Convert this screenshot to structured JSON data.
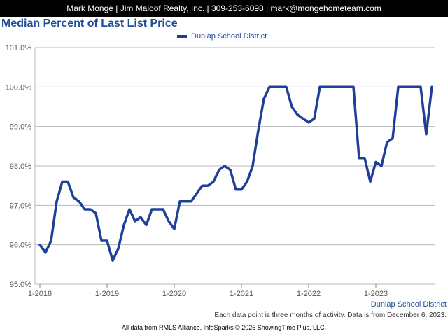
{
  "header": {
    "contact": "Mark Monge | Jim Maloof Realty, Inc. | 309-253-6098 | mark@mongehometeam.com"
  },
  "footer": {
    "region": "Dunlap School District",
    "note": "Each data point is three months of activity. Data is from December 6, 2023.",
    "credit": "All data from RMLS Alliance. InfoSparks © 2025 ShowingTime Plus, LLC."
  },
  "colors": {
    "line": "#1f3f99",
    "title": "#1f4e99"
  },
  "chart_data": {
    "type": "line",
    "title": "Median Percent of Last List Price",
    "xlabel": "",
    "ylabel": "",
    "ylim": [
      95.0,
      101.0
    ],
    "yticks": [
      "95.0%",
      "96.0%",
      "97.0%",
      "98.0%",
      "99.0%",
      "100.0%",
      "101.0%"
    ],
    "ytick_values": [
      95.0,
      96.0,
      97.0,
      98.0,
      99.0,
      100.0,
      101.0
    ],
    "xticks": [
      "1-2018",
      "1-2019",
      "1-2020",
      "1-2021",
      "1-2022",
      "1-2023"
    ],
    "xtick_values": [
      "2018-01",
      "2019-01",
      "2020-01",
      "2021-01",
      "2022-01",
      "2023-01"
    ],
    "x_range": [
      "2018-01",
      "2023-11"
    ],
    "grid": true,
    "legend_position": "top-center",
    "series": [
      {
        "name": "Dunlap School District",
        "color": "#1f3f99",
        "x": [
          "2018-01",
          "2018-02",
          "2018-03",
          "2018-04",
          "2018-05",
          "2018-06",
          "2018-07",
          "2018-08",
          "2018-09",
          "2018-10",
          "2018-11",
          "2018-12",
          "2019-01",
          "2019-02",
          "2019-03",
          "2019-04",
          "2019-05",
          "2019-06",
          "2019-07",
          "2019-08",
          "2019-09",
          "2019-10",
          "2019-11",
          "2019-12",
          "2020-01",
          "2020-02",
          "2020-03",
          "2020-04",
          "2020-05",
          "2020-06",
          "2020-07",
          "2020-08",
          "2020-09",
          "2020-10",
          "2020-11",
          "2020-12",
          "2021-01",
          "2021-02",
          "2021-03",
          "2021-04",
          "2021-05",
          "2021-06",
          "2021-07",
          "2021-08",
          "2021-09",
          "2021-10",
          "2021-11",
          "2021-12",
          "2022-01",
          "2022-02",
          "2022-03",
          "2022-04",
          "2022-05",
          "2022-06",
          "2022-07",
          "2022-08",
          "2022-09",
          "2022-10",
          "2022-11",
          "2022-12",
          "2023-01",
          "2023-02",
          "2023-03",
          "2023-04",
          "2023-05",
          "2023-06",
          "2023-07",
          "2023-08",
          "2023-09",
          "2023-10",
          "2023-11"
        ],
        "values": [
          96.0,
          95.8,
          96.1,
          97.1,
          97.6,
          97.6,
          97.2,
          97.1,
          96.9,
          96.9,
          96.8,
          96.1,
          96.1,
          95.6,
          95.9,
          96.5,
          96.9,
          96.6,
          96.7,
          96.5,
          96.9,
          96.9,
          96.9,
          96.6,
          96.4,
          97.1,
          97.1,
          97.1,
          97.3,
          97.5,
          97.5,
          97.6,
          97.9,
          98.0,
          97.9,
          97.4,
          97.4,
          97.6,
          98.0,
          98.9,
          99.7,
          100.0,
          100.0,
          100.0,
          100.0,
          99.5,
          99.3,
          99.2,
          99.1,
          99.2,
          100.0,
          100.0,
          100.0,
          100.0,
          100.0,
          100.0,
          100.0,
          98.2,
          98.2,
          97.6,
          98.1,
          98.0,
          98.6,
          98.7,
          100.0,
          100.0,
          100.0,
          100.0,
          100.0,
          98.8,
          100.0
        ]
      }
    ]
  }
}
